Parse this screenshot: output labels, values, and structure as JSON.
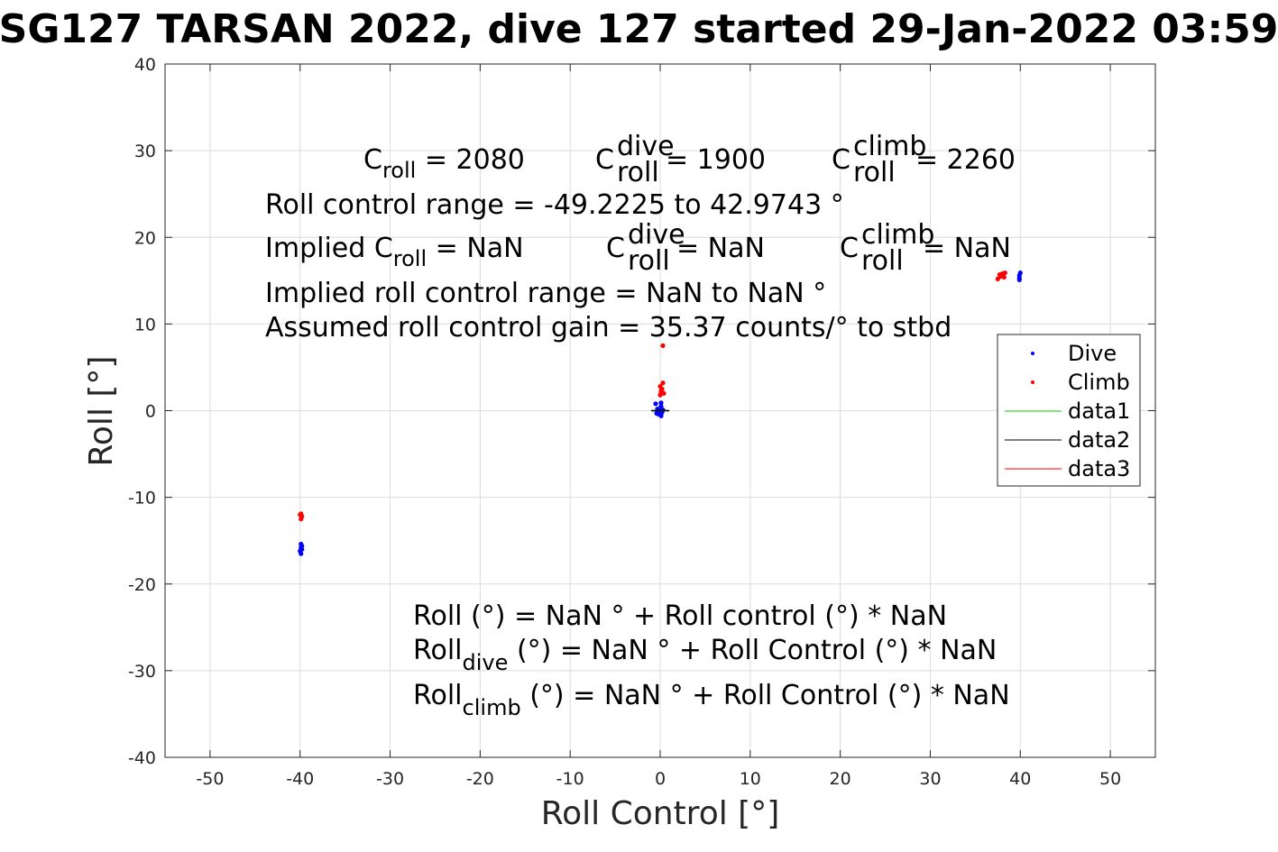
{
  "chart_data": {
    "type": "scatter",
    "title": "SG127 TARSAN 2022, dive 127 started 29-Jan-2022 03:59",
    "xlabel": "Roll Control [°]",
    "ylabel": "Roll [°]",
    "xlim": [
      -55,
      55
    ],
    "ylim": [
      -40,
      40
    ],
    "xticks": [
      -50,
      -40,
      -30,
      -20,
      -10,
      0,
      10,
      20,
      30,
      40,
      50
    ],
    "yticks": [
      -40,
      -30,
      -20,
      -10,
      0,
      10,
      20,
      30,
      40
    ],
    "grid": true,
    "legend_position": "top-right",
    "series": [
      {
        "name": "Dive",
        "kind": "points",
        "color": "#0000ff",
        "points": [
          [
            -39.9,
            -15.4
          ],
          [
            -39.9,
            -15.8
          ],
          [
            -39.8,
            -16.0
          ],
          [
            -40.0,
            -16.2
          ],
          [
            -39.9,
            -16.5
          ],
          [
            -39.8,
            -15.6
          ],
          [
            -0.5,
            0.8
          ],
          [
            -0.3,
            0.2
          ],
          [
            -0.2,
            -0.4
          ],
          [
            0.0,
            0.0
          ],
          [
            0.1,
            0.5
          ],
          [
            0.2,
            -0.2
          ],
          [
            0.1,
            -0.6
          ],
          [
            -0.4,
            -0.3
          ],
          [
            0.3,
            0.1
          ],
          [
            0.1,
            0.9
          ],
          [
            39.9,
            15.3
          ],
          [
            39.9,
            15.6
          ],
          [
            40.0,
            15.9
          ],
          [
            39.9,
            15.1
          ]
        ]
      },
      {
        "name": "Climb",
        "kind": "points",
        "color": "#ff0000",
        "points": [
          [
            -39.9,
            -11.9
          ],
          [
            -39.8,
            -12.2
          ],
          [
            -39.9,
            -12.5
          ],
          [
            -40.0,
            -12.0
          ],
          [
            0.0,
            1.8
          ],
          [
            0.1,
            2.1
          ],
          [
            0.2,
            2.5
          ],
          [
            0.0,
            2.8
          ],
          [
            0.3,
            3.2
          ],
          [
            0.1,
            2.3
          ],
          [
            0.4,
            2.0
          ],
          [
            0.3,
            7.5
          ],
          [
            37.5,
            15.2
          ],
          [
            37.8,
            15.5
          ],
          [
            38.0,
            15.8
          ],
          [
            38.2,
            15.4
          ],
          [
            37.7,
            15.7
          ],
          [
            38.3,
            15.9
          ]
        ]
      },
      {
        "name": "data1",
        "kind": "line",
        "color": "#00cc00",
        "x": [
          -1,
          1
        ],
        "y": [
          0,
          0
        ]
      },
      {
        "name": "data2",
        "kind": "line",
        "color": "#000000",
        "x": [
          -1,
          1
        ],
        "y": [
          0,
          0
        ]
      },
      {
        "name": "data3",
        "kind": "line",
        "color": "#ff0000",
        "x": [],
        "y": []
      }
    ],
    "annotations": {
      "coeffs": {
        "c_roll": "C",
        "c_roll_sub": "roll",
        "c_roll_val": " = 2080",
        "c_dive": "C",
        "c_dive_sup": "dive",
        "c_dive_sub": "roll",
        "c_dive_val": " = 1900",
        "c_climb": "C",
        "c_climb_sup": "climb",
        "c_climb_sub": "roll",
        "c_climb_val": " = 2260"
      },
      "range": "Roll control range = -49.2225 to 42.9743 °",
      "implied": {
        "prefix": "Implied C",
        "sub": "roll",
        "val": " =  NaN",
        "dive_c": "C",
        "dive_sup": "dive",
        "dive_sub": "roll",
        "dive_val": " =  NaN",
        "climb_c": "C",
        "climb_sup": "climb",
        "climb_sub": "roll",
        "climb_val": " =  NaN"
      },
      "implied_range": "Implied roll control range = NaN to NaN °",
      "gain": "Assumed roll control gain = 35.37 counts/° to stbd",
      "fit1": "Roll (°) = NaN ° + Roll control (°) * NaN",
      "fit2_main": "Roll",
      "fit2_sub": "dive",
      "fit2_rest": " (°) = NaN ° + Roll Control (°) * NaN",
      "fit3_main": "Roll",
      "fit3_sub": "climb",
      "fit3_rest": " (°) = NaN ° + Roll Control (°) * NaN"
    }
  }
}
